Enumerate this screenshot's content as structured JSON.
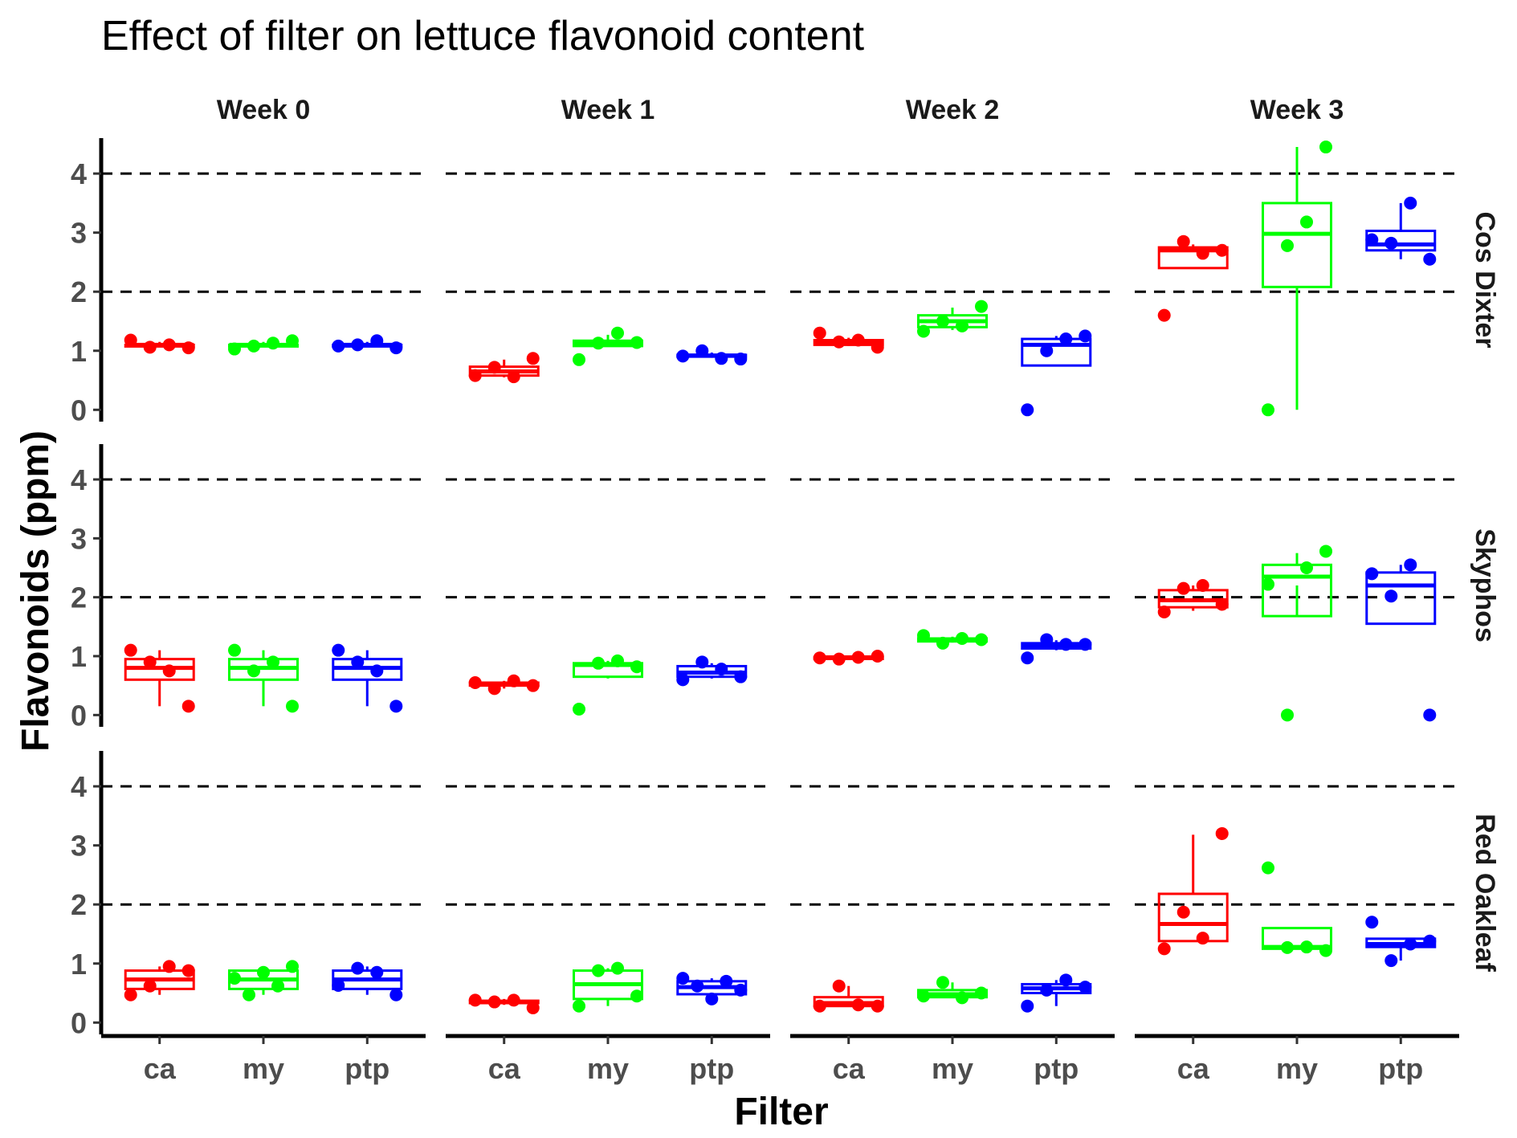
{
  "chart_data": {
    "type": "boxplot",
    "title": "Effect of filter on lettuce flavonoid content",
    "xlabel": "Filter",
    "ylabel": "Flavonoids (ppm)",
    "categories": [
      "ca",
      "my",
      "ptp"
    ],
    "colors": {
      "ca": "#ff0000",
      "my": "#00ff00",
      "ptp": "#0000ff"
    },
    "ylim": [
      -0.2,
      4.6
    ],
    "yticks": [
      0,
      1,
      2,
      3,
      4
    ],
    "reference_lines": [
      2,
      4
    ],
    "columns": [
      "Week 0",
      "Week 1",
      "Week 2",
      "Week 3"
    ],
    "rows": [
      "Cos Dixter",
      "Skyphos",
      "Red Oakleaf"
    ],
    "panels": [
      {
        "row": "Cos Dixter",
        "column": "Week 0",
        "groups": [
          {
            "filter": "ca",
            "box": [
              1.07,
              1.08,
              1.1,
              1.1,
              1.15
            ],
            "points": [
              1.18,
              1.06,
              1.1,
              1.05
            ]
          },
          {
            "filter": "my",
            "box": [
              1.07,
              1.08,
              1.1,
              1.1,
              1.15
            ],
            "points": [
              1.03,
              1.08,
              1.13,
              1.17
            ]
          },
          {
            "filter": "ptp",
            "box": [
              1.07,
              1.08,
              1.1,
              1.1,
              1.15
            ],
            "points": [
              1.08,
              1.1,
              1.17,
              1.05
            ]
          }
        ]
      },
      {
        "row": "Cos Dixter",
        "column": "Week 1",
        "groups": [
          {
            "filter": "ca",
            "box": [
              0.55,
              0.58,
              0.65,
              0.73,
              0.85
            ],
            "points": [
              0.58,
              0.72,
              0.56,
              0.87
            ]
          },
          {
            "filter": "my",
            "box": [
              1.07,
              1.08,
              1.12,
              1.17,
              1.27
            ],
            "points": [
              0.85,
              1.13,
              1.3,
              1.14
            ]
          },
          {
            "filter": "ptp",
            "box": [
              0.88,
              0.9,
              0.92,
              0.93,
              0.97
            ],
            "points": [
              0.91,
              1.0,
              0.87,
              0.86
            ]
          }
        ]
      },
      {
        "row": "Cos Dixter",
        "column": "Week 2",
        "groups": [
          {
            "filter": "ca",
            "box": [
              1.08,
              1.1,
              1.15,
              1.18,
              1.22
            ],
            "points": [
              1.3,
              1.15,
              1.18,
              1.06
            ]
          },
          {
            "filter": "my",
            "box": [
              1.35,
              1.4,
              1.5,
              1.6,
              1.73
            ],
            "points": [
              1.33,
              1.5,
              1.42,
              1.75
            ]
          },
          {
            "filter": "ptp",
            "box": [
              0.75,
              0.75,
              1.1,
              1.2,
              1.25
            ],
            "points": [
              0.0,
              1.0,
              1.2,
              1.25
            ]
          }
        ]
      },
      {
        "row": "Cos Dixter",
        "column": "Week 3",
        "groups": [
          {
            "filter": "ca",
            "box": [
              2.4,
              2.4,
              2.7,
              2.75,
              2.8
            ],
            "points": [
              1.6,
              2.85,
              2.65,
              2.7
            ]
          },
          {
            "filter": "my",
            "box": [
              0.0,
              2.08,
              2.98,
              3.5,
              4.45
            ],
            "points": [
              0.0,
              2.78,
              3.18,
              4.45
            ]
          },
          {
            "filter": "ptp",
            "box": [
              2.55,
              2.7,
              2.8,
              3.03,
              3.5
            ],
            "points": [
              2.88,
              2.82,
              3.5,
              2.55
            ]
          }
        ]
      },
      {
        "row": "Skyphos",
        "column": "Week 0",
        "groups": [
          {
            "filter": "ca",
            "box": [
              0.15,
              0.6,
              0.8,
              0.95,
              1.1
            ],
            "points": [
              1.1,
              0.9,
              0.75,
              0.15
            ]
          },
          {
            "filter": "my",
            "box": [
              0.15,
              0.6,
              0.8,
              0.95,
              1.1
            ],
            "points": [
              1.1,
              0.75,
              0.9,
              0.15
            ]
          },
          {
            "filter": "ptp",
            "box": [
              0.15,
              0.6,
              0.8,
              0.95,
              1.1
            ],
            "points": [
              1.1,
              0.9,
              0.75,
              0.15
            ]
          }
        ]
      },
      {
        "row": "Skyphos",
        "column": "Week 1",
        "groups": [
          {
            "filter": "ca",
            "box": [
              0.45,
              0.5,
              0.53,
              0.55,
              0.58
            ],
            "points": [
              0.55,
              0.45,
              0.58,
              0.5
            ]
          },
          {
            "filter": "my",
            "box": [
              0.62,
              0.65,
              0.85,
              0.88,
              0.92
            ],
            "points": [
              0.1,
              0.88,
              0.92,
              0.82
            ]
          },
          {
            "filter": "ptp",
            "box": [
              0.62,
              0.65,
              0.72,
              0.83,
              0.88
            ],
            "points": [
              0.6,
              0.9,
              0.78,
              0.65
            ]
          }
        ]
      },
      {
        "row": "Skyphos",
        "column": "Week 2",
        "groups": [
          {
            "filter": "ca",
            "box": [
              0.97,
              0.97,
              0.98,
              0.98,
              0.99
            ],
            "points": [
              0.97,
              0.95,
              0.98,
              1.0
            ]
          },
          {
            "filter": "my",
            "box": [
              1.23,
              1.25,
              1.27,
              1.3,
              1.33
            ],
            "points": [
              1.35,
              1.22,
              1.3,
              1.28
            ]
          },
          {
            "filter": "ptp",
            "box": [
              1.1,
              1.13,
              1.18,
              1.22,
              1.27
            ],
            "points": [
              0.97,
              1.28,
              1.2,
              1.2
            ]
          }
        ]
      },
      {
        "row": "Skyphos",
        "column": "Week 3",
        "groups": [
          {
            "filter": "ca",
            "box": [
              1.77,
              1.83,
              1.95,
              2.12,
              2.2
            ],
            "points": [
              1.75,
              2.15,
              2.2,
              1.88
            ]
          },
          {
            "filter": "my",
            "box": [
              2.2,
              1.68,
              2.35,
              2.55,
              2.75
            ],
            "points": [
              2.22,
              0.0,
              2.5,
              2.78
            ]
          },
          {
            "filter": "ptp",
            "box": [
              1.55,
              1.55,
              2.2,
              2.42,
              2.55
            ],
            "points": [
              2.4,
              2.02,
              2.55,
              0.0
            ]
          }
        ]
      },
      {
        "row": "Red Oakleaf",
        "column": "Week 0",
        "groups": [
          {
            "filter": "ca",
            "box": [
              0.47,
              0.57,
              0.73,
              0.88,
              0.95
            ],
            "points": [
              0.47,
              0.62,
              0.95,
              0.88
            ]
          },
          {
            "filter": "my",
            "box": [
              0.47,
              0.57,
              0.73,
              0.88,
              0.95
            ],
            "points": [
              0.75,
              0.47,
              0.85,
              0.62,
              0.95
            ]
          },
          {
            "filter": "ptp",
            "box": [
              0.47,
              0.57,
              0.73,
              0.88,
              0.95
            ],
            "points": [
              0.63,
              0.92,
              0.85,
              0.47
            ]
          }
        ]
      },
      {
        "row": "Red Oakleaf",
        "column": "Week 1",
        "groups": [
          {
            "filter": "ca",
            "box": [
              0.3,
              0.33,
              0.35,
              0.37,
              0.4
            ],
            "points": [
              0.38,
              0.35,
              0.38,
              0.25
            ]
          },
          {
            "filter": "my",
            "box": [
              0.28,
              0.4,
              0.65,
              0.88,
              0.92
            ],
            "points": [
              0.28,
              0.88,
              0.92,
              0.45
            ]
          },
          {
            "filter": "ptp",
            "box": [
              0.38,
              0.48,
              0.6,
              0.7,
              0.75
            ],
            "points": [
              0.75,
              0.62,
              0.4,
              0.7,
              0.55
            ]
          }
        ]
      },
      {
        "row": "Red Oakleaf",
        "column": "Week 2",
        "groups": [
          {
            "filter": "ca",
            "box": [
              0.28,
              0.28,
              0.33,
              0.43,
              0.62
            ],
            "points": [
              0.28,
              0.62,
              0.3,
              0.28
            ]
          },
          {
            "filter": "my",
            "box": [
              0.42,
              0.43,
              0.48,
              0.55,
              0.68
            ],
            "points": [
              0.45,
              0.68,
              0.42,
              0.5
            ]
          },
          {
            "filter": "ptp",
            "box": [
              0.28,
              0.5,
              0.58,
              0.65,
              0.72
            ],
            "points": [
              0.28,
              0.55,
              0.72,
              0.6
            ]
          }
        ]
      },
      {
        "row": "Red Oakleaf",
        "column": "Week 3",
        "groups": [
          {
            "filter": "ca",
            "box": [
              1.38,
              1.38,
              1.67,
              2.18,
              3.18
            ],
            "points": [
              1.25,
              1.87,
              1.43,
              3.2
            ]
          },
          {
            "filter": "my",
            "box": [
              1.25,
              1.25,
              1.28,
              1.6,
              1.6
            ],
            "points": [
              2.62,
              1.27,
              1.28,
              1.22
            ]
          },
          {
            "filter": "ptp",
            "box": [
              1.05,
              1.28,
              1.33,
              1.42,
              1.42
            ],
            "points": [
              1.7,
              1.05,
              1.33,
              1.38
            ]
          }
        ]
      }
    ]
  }
}
